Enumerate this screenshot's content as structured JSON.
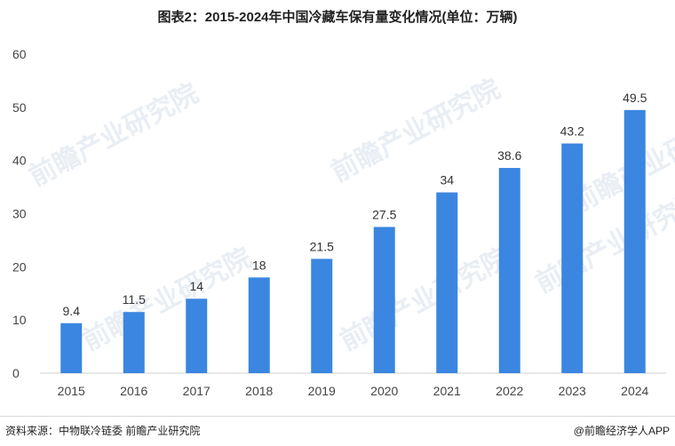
{
  "chart_data": {
    "type": "bar",
    "title": "图表2：2015-2024年中国冷藏车保有量变化情况(单位：万辆)",
    "categories": [
      "2015",
      "2016",
      "2017",
      "2018",
      "2019",
      "2020",
      "2021",
      "2022",
      "2023",
      "2024"
    ],
    "values": [
      9.4,
      11.5,
      14,
      18,
      21.5,
      27.5,
      34,
      38.6,
      43.2,
      49.5
    ],
    "value_labels": [
      "9.4",
      "11.5",
      "14",
      "18",
      "21.5",
      "27.5",
      "34",
      "38.6",
      "43.2",
      "49.5"
    ],
    "ylim": [
      0,
      60
    ],
    "yticks": [
      0,
      10,
      20,
      30,
      40,
      50,
      60
    ],
    "xlabel": "",
    "ylabel": "",
    "grid": false,
    "bar_color": "#3a86e0"
  },
  "footer": {
    "source": "资料来源：中物联冷链委 前瞻产业研究院",
    "brand": "@前瞻经济学人APP"
  },
  "watermark": "前瞻产业研究院"
}
